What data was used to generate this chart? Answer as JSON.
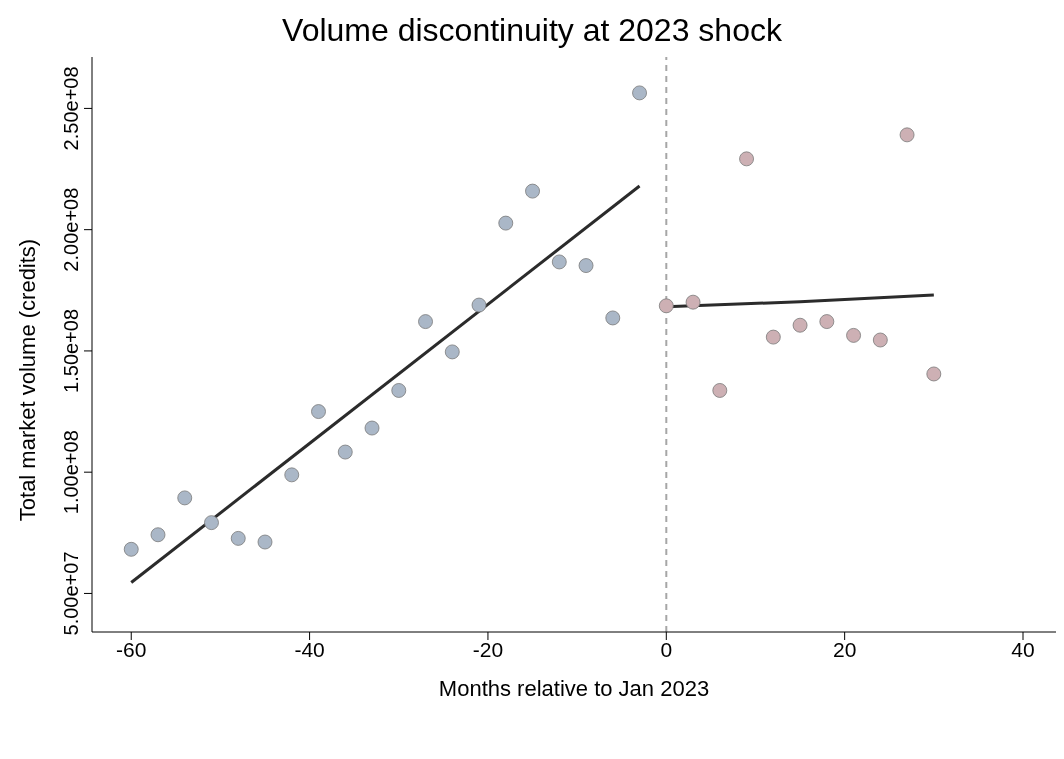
{
  "chart_data": {
    "type": "scatter",
    "title": "Volume discontinuity at 2023 shock",
    "xlabel": "Months relative to Jan 2023",
    "ylabel": "Total market volume (credits)",
    "xlim": [
      -64.4,
      43.7
    ],
    "xticks": [
      -60,
      -40,
      -20,
      0,
      20,
      40
    ],
    "ylim": [
      34100000,
      271200000
    ],
    "yticks": [
      {
        "value": 50000000,
        "label": "5.00e+07"
      },
      {
        "value": 100000000,
        "label": "1.00e+08"
      },
      {
        "value": 150000000,
        "label": "1.50e+08"
      },
      {
        "value": 200000000,
        "label": "2.00e+08"
      },
      {
        "value": 250000000,
        "label": "2.50e+08"
      }
    ],
    "grid": false,
    "legend": false,
    "marker": "circle",
    "ref_lines": [
      {
        "axis": "x",
        "value": 0,
        "color": "#a6a6a6",
        "line_style": "dashed"
      }
    ],
    "series": [
      {
        "color": "#aab7c7",
        "x": [
          -60,
          -57,
          -54,
          -51,
          -48,
          -45,
          -42,
          -39,
          -36,
          -33,
          -30,
          -27,
          -24,
          -21,
          -18,
          -15,
          -12,
          -9,
          -6,
          -3
        ],
        "values": [
          68200000,
          74200000,
          89400000,
          79200000,
          72700000,
          71200000,
          98900000,
          125000000,
          108300000,
          118200000,
          133700000,
          162100000,
          149600000,
          168900000,
          202700000,
          215900000,
          186700000,
          185200000,
          163600000,
          256400000
        ]
      },
      {
        "color": "#cdb0b4",
        "x": [
          0,
          3,
          6,
          9,
          12,
          15,
          18,
          21,
          24,
          27,
          30
        ],
        "values": [
          168600000,
          170100000,
          133700000,
          229200000,
          155700000,
          160600000,
          162100000,
          156400000,
          154500000,
          239100000,
          140500000
        ]
      },
      {
        "type": "line",
        "marker": "none",
        "color": "#2b2b2b",
        "x": [
          -60,
          -3
        ],
        "values": [
          54500000,
          218000000
        ]
      },
      {
        "type": "line",
        "marker": "none",
        "color": "#2b2b2b",
        "x": [
          0,
          15,
          30
        ],
        "values": [
          168200000,
          170300000,
          173100000
        ]
      }
    ]
  }
}
